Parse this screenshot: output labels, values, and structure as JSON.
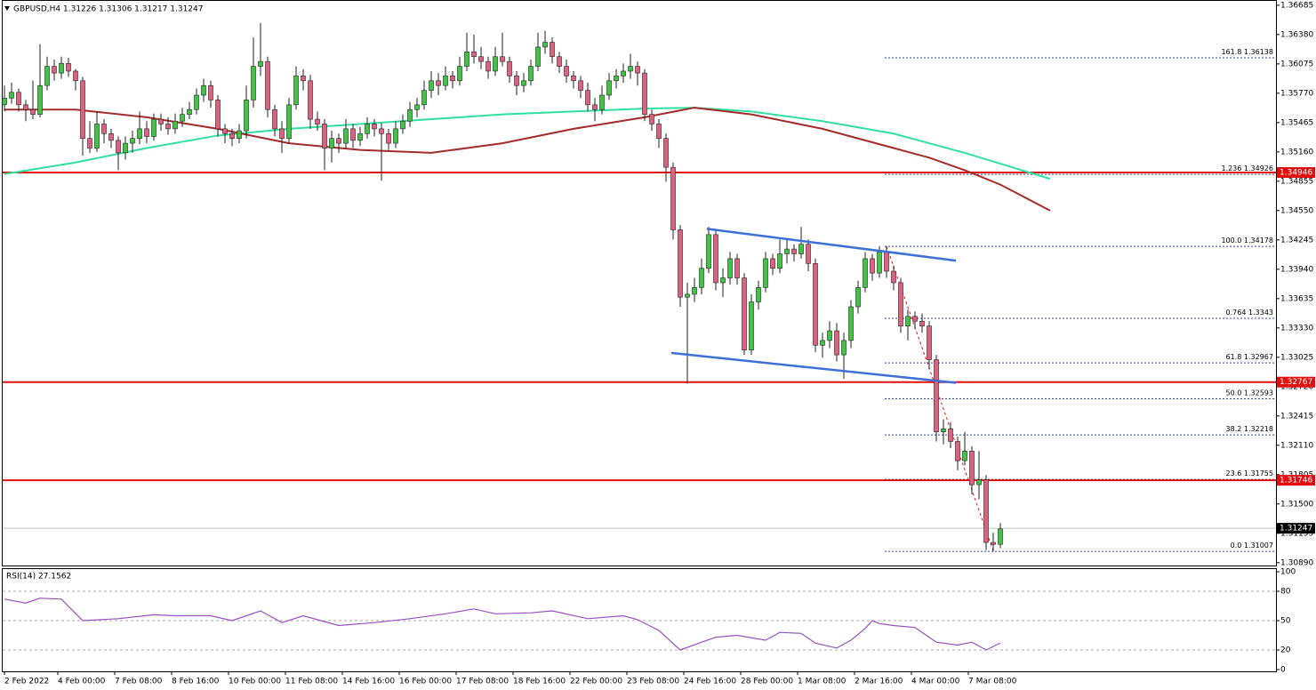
{
  "chart_data": {
    "type": "candlestick",
    "header": "GBPUSD,H4  1.31226 1.31306 1.31217 1.31247",
    "ylim": [
      1.3086,
      1.3673
    ],
    "yticks": [
      1.36685,
      {
        "value": 1.3638,
        "label": "1.36380"
      },
      1.36075,
      {
        "value": 1.3577,
        "label": "1.35770"
      },
      1.35465,
      {
        "value": 1.3516,
        "label": "1.35160"
      },
      1.34855,
      {
        "value": 1.3455,
        "label": "1.34550"
      },
      1.34245,
      {
        "value": 1.3394,
        "label": "1.33940"
      },
      1.33635,
      {
        "value": 1.3333,
        "label": "1.33330"
      },
      1.33025,
      {
        "value": 1.3272,
        "label": "1.32720"
      },
      1.32415,
      {
        "value": 1.3211,
        "label": "1.32110"
      },
      1.31805,
      {
        "value": 1.315,
        "label": "1.31500"
      },
      1.31195,
      {
        "value": 1.3089,
        "label": "1.30890"
      }
    ],
    "xticks": [
      {
        "value": 0,
        "label": "2 Feb 2022"
      },
      {
        "value": 7.5,
        "label": "4 Feb 00:00"
      },
      {
        "value": 15.5,
        "label": "7 Feb 08:00"
      },
      {
        "value": 23.5,
        "label": "8 Feb 16:00"
      },
      {
        "value": 31.5,
        "label": "10 Feb 00:00"
      },
      {
        "value": 39.5,
        "label": "11 Feb 08:00"
      },
      {
        "value": 47.5,
        "label": "14 Feb 16:00"
      },
      {
        "value": 55.5,
        "label": "16 Feb 00:00"
      },
      {
        "value": 63.5,
        "label": "17 Feb 08:00"
      },
      {
        "value": 71.5,
        "label": "18 Feb 16:00"
      },
      {
        "value": 79.5,
        "label": "22 Feb 00:00"
      },
      {
        "value": 87.5,
        "label": "23 Feb 08:00"
      },
      {
        "value": 95.5,
        "label": "24 Feb 16:00"
      },
      {
        "value": 103.5,
        "label": "28 Feb 00:00"
      },
      {
        "value": 111.5,
        "label": "1 Mar 08:00"
      },
      {
        "value": 119.5,
        "label": "2 Mar 16:00"
      },
      {
        "value": 127.5,
        "label": "4 Mar 00:00"
      },
      {
        "value": 135.5,
        "label": "7 Mar 08:00"
      }
    ],
    "bull_color": "#3cc83c",
    "bear_color": "#e0607e",
    "candles": [
      [
        1.3565,
        1.3585,
        1.3558,
        1.3572
      ],
      [
        1.3572,
        1.3588,
        1.3566,
        1.3578
      ],
      [
        1.3578,
        1.3582,
        1.3558,
        1.3565
      ],
      [
        1.3565,
        1.357,
        1.3548,
        1.356
      ],
      [
        1.356,
        1.359,
        1.355,
        1.3555
      ],
      [
        1.3555,
        1.3628,
        1.3552,
        1.3585
      ],
      [
        1.3585,
        1.3615,
        1.358,
        1.3605
      ],
      [
        1.3605,
        1.3612,
        1.359,
        1.3598
      ],
      [
        1.3598,
        1.3615,
        1.3592,
        1.3608
      ],
      [
        1.3608,
        1.3614,
        1.3594,
        1.36
      ],
      [
        1.36,
        1.3602,
        1.358,
        1.359
      ],
      [
        1.359,
        1.3594,
        1.3512,
        1.353
      ],
      [
        1.353,
        1.3548,
        1.3515,
        1.352
      ],
      [
        1.352,
        1.3558,
        1.3516,
        1.3545
      ],
      [
        1.3545,
        1.355,
        1.3525,
        1.3535
      ],
      [
        1.3535,
        1.354,
        1.352,
        1.3528
      ],
      [
        1.3528,
        1.3532,
        1.3497,
        1.3515
      ],
      [
        1.3515,
        1.3532,
        1.3508,
        1.3525
      ],
      [
        1.3525,
        1.3538,
        1.3515,
        1.353
      ],
      [
        1.353,
        1.3558,
        1.3524,
        1.354
      ],
      [
        1.354,
        1.3548,
        1.3525,
        1.3532
      ],
      [
        1.3532,
        1.3556,
        1.3528,
        1.355
      ],
      [
        1.355,
        1.3556,
        1.3538,
        1.3545
      ],
      [
        1.3545,
        1.3552,
        1.3534,
        1.354
      ],
      [
        1.354,
        1.3556,
        1.3535,
        1.3548
      ],
      [
        1.3548,
        1.3562,
        1.3542,
        1.3555
      ],
      [
        1.3555,
        1.3568,
        1.355,
        1.356
      ],
      [
        1.356,
        1.3582,
        1.3555,
        1.3575
      ],
      [
        1.3575,
        1.3592,
        1.3568,
        1.3585
      ],
      [
        1.3585,
        1.359,
        1.3562,
        1.357
      ],
      [
        1.357,
        1.3575,
        1.3532,
        1.354
      ],
      [
        1.354,
        1.3545,
        1.3525,
        1.3535
      ],
      [
        1.3535,
        1.354,
        1.3522,
        1.353
      ],
      [
        1.353,
        1.3545,
        1.3525,
        1.3538
      ],
      [
        1.3538,
        1.3585,
        1.353,
        1.357
      ],
      [
        1.357,
        1.3635,
        1.3562,
        1.3605
      ],
      [
        1.3605,
        1.365,
        1.3595,
        1.361
      ],
      [
        1.361,
        1.3615,
        1.3552,
        1.356
      ],
      [
        1.356,
        1.3565,
        1.3532,
        1.354
      ],
      [
        1.354,
        1.3548,
        1.3515,
        1.353
      ],
      [
        1.353,
        1.3572,
        1.3525,
        1.3565
      ],
      [
        1.3565,
        1.3605,
        1.356,
        1.3595
      ],
      [
        1.3595,
        1.3602,
        1.358,
        1.359
      ],
      [
        1.359,
        1.3596,
        1.354,
        1.355
      ],
      [
        1.355,
        1.3558,
        1.3538,
        1.3545
      ],
      [
        1.3545,
        1.355,
        1.3497,
        1.352
      ],
      [
        1.352,
        1.3538,
        1.3505,
        1.353
      ],
      [
        1.353,
        1.3535,
        1.3515,
        1.3525
      ],
      [
        1.3525,
        1.355,
        1.352,
        1.354
      ],
      [
        1.354,
        1.3545,
        1.352,
        1.3528
      ],
      [
        1.3528,
        1.3542,
        1.3522,
        1.3535
      ],
      [
        1.3535,
        1.3552,
        1.353,
        1.3545
      ],
      [
        1.3545,
        1.355,
        1.3532,
        1.354
      ],
      [
        1.354,
        1.3546,
        1.3486,
        1.3535
      ],
      [
        1.3535,
        1.354,
        1.3518,
        1.3525
      ],
      [
        1.3525,
        1.3548,
        1.352,
        1.354
      ],
      [
        1.354,
        1.3555,
        1.3535,
        1.3548
      ],
      [
        1.3548,
        1.3568,
        1.3542,
        1.356
      ],
      [
        1.356,
        1.3572,
        1.3552,
        1.3565
      ],
      [
        1.3565,
        1.359,
        1.356,
        1.358
      ],
      [
        1.358,
        1.36,
        1.3572,
        1.359
      ],
      [
        1.359,
        1.3598,
        1.3575,
        1.3585
      ],
      [
        1.3585,
        1.3605,
        1.358,
        1.3595
      ],
      [
        1.3595,
        1.36,
        1.3582,
        1.359
      ],
      [
        1.359,
        1.3615,
        1.3585,
        1.3605
      ],
      [
        1.3605,
        1.364,
        1.36,
        1.362
      ],
      [
        1.362,
        1.3638,
        1.3608,
        1.3615
      ],
      [
        1.3615,
        1.3625,
        1.3602,
        1.361
      ],
      [
        1.361,
        1.3615,
        1.3592,
        1.36
      ],
      [
        1.36,
        1.3625,
        1.3595,
        1.3615
      ],
      [
        1.3615,
        1.364,
        1.3605,
        1.361
      ],
      [
        1.361,
        1.3615,
        1.3588,
        1.3595
      ],
      [
        1.3595,
        1.36,
        1.3575,
        1.3585
      ],
      [
        1.3585,
        1.3598,
        1.3578,
        1.359
      ],
      [
        1.359,
        1.3612,
        1.3585,
        1.3605
      ],
      [
        1.3605,
        1.364,
        1.36,
        1.3625
      ],
      [
        1.3625,
        1.3642,
        1.3618,
        1.363
      ],
      [
        1.363,
        1.3635,
        1.3608,
        1.3615
      ],
      [
        1.3615,
        1.362,
        1.3598,
        1.3605
      ],
      [
        1.3605,
        1.3612,
        1.3588,
        1.3595
      ],
      [
        1.3595,
        1.36,
        1.3582,
        1.359
      ],
      [
        1.359,
        1.3595,
        1.3572,
        1.358
      ],
      [
        1.358,
        1.3588,
        1.3558,
        1.3565
      ],
      [
        1.3565,
        1.3572,
        1.3548,
        1.356
      ],
      [
        1.356,
        1.3585,
        1.3555,
        1.3575
      ],
      [
        1.3575,
        1.3598,
        1.357,
        1.359
      ],
      [
        1.359,
        1.3602,
        1.3582,
        1.3595
      ],
      [
        1.3595,
        1.3608,
        1.3588,
        1.36
      ],
      [
        1.36,
        1.3618,
        1.3592,
        1.3605
      ],
      [
        1.3605,
        1.361,
        1.3585,
        1.3598
      ],
      [
        1.3598,
        1.3602,
        1.3548,
        1.3555
      ],
      [
        1.3555,
        1.356,
        1.3538,
        1.3545
      ],
      [
        1.3545,
        1.355,
        1.352,
        1.353
      ],
      [
        1.353,
        1.3535,
        1.3485,
        1.35
      ],
      [
        1.35,
        1.3505,
        1.3425,
        1.3435
      ],
      [
        1.3435,
        1.344,
        1.3355,
        1.3365
      ],
      [
        1.3365,
        1.338,
        1.3275,
        1.3368
      ],
      [
        1.3368,
        1.3385,
        1.336,
        1.3375
      ],
      [
        1.3375,
        1.3405,
        1.3368,
        1.3395
      ],
      [
        1.3395,
        1.3438,
        1.339,
        1.343
      ],
      [
        1.343,
        1.3436,
        1.3372,
        1.338
      ],
      [
        1.338,
        1.3395,
        1.3365,
        1.3385
      ],
      [
        1.3385,
        1.3412,
        1.3378,
        1.3405
      ],
      [
        1.3405,
        1.341,
        1.3378,
        1.3385
      ],
      [
        1.3385,
        1.339,
        1.3305,
        1.331
      ],
      [
        1.331,
        1.3368,
        1.3305,
        1.336
      ],
      [
        1.336,
        1.3382,
        1.3352,
        1.3375
      ],
      [
        1.3375,
        1.3412,
        1.337,
        1.3405
      ],
      [
        1.3405,
        1.341,
        1.3388,
        1.3395
      ],
      [
        1.3395,
        1.3425,
        1.339,
        1.341
      ],
      [
        1.341,
        1.3425,
        1.34,
        1.3415
      ],
      [
        1.3415,
        1.342,
        1.3402,
        1.341
      ],
      [
        1.341,
        1.3438,
        1.3405,
        1.342
      ],
      [
        1.342,
        1.3425,
        1.3392,
        1.34
      ],
      [
        1.34,
        1.3405,
        1.3308,
        1.3315
      ],
      [
        1.3315,
        1.3328,
        1.3302,
        1.332
      ],
      [
        1.332,
        1.334,
        1.3312,
        1.333
      ],
      [
        1.333,
        1.3338,
        1.3298,
        1.3305
      ],
      [
        1.3305,
        1.3328,
        1.328,
        1.332
      ],
      [
        1.332,
        1.3362,
        1.3312,
        1.3355
      ],
      [
        1.3355,
        1.3382,
        1.3348,
        1.3375
      ],
      [
        1.3375,
        1.3412,
        1.337,
        1.3405
      ],
      [
        1.3405,
        1.341,
        1.3382,
        1.339
      ],
      [
        1.339,
        1.3418,
        1.3385,
        1.3412
      ],
      [
        1.3412,
        1.3418,
        1.3385,
        1.3392
      ],
      [
        1.3392,
        1.3398,
        1.3372,
        1.338
      ],
      [
        1.338,
        1.3385,
        1.3328,
        1.3335
      ],
      [
        1.3335,
        1.3352,
        1.332,
        1.3345
      ],
      [
        1.3345,
        1.335,
        1.3332,
        1.334
      ],
      [
        1.334,
        1.3348,
        1.3328,
        1.3335
      ],
      [
        1.3335,
        1.334,
        1.329,
        1.33
      ],
      [
        1.33,
        1.3305,
        1.3215,
        1.3225
      ],
      [
        1.3225,
        1.3238,
        1.3212,
        1.3228
      ],
      [
        1.3228,
        1.3235,
        1.3208,
        1.3215
      ],
      [
        1.3215,
        1.322,
        1.3185,
        1.3195
      ],
      [
        1.3195,
        1.3225,
        1.319,
        1.3205
      ],
      [
        1.3205,
        1.321,
        1.316,
        1.317
      ],
      [
        1.317,
        1.3205,
        1.3155,
        1.3175
      ],
      [
        1.3175,
        1.318,
        1.3102,
        1.311
      ],
      [
        1.311,
        1.312,
        1.3101,
        1.3108
      ],
      [
        1.3108,
        1.313,
        1.3104,
        1.3124
      ]
    ],
    "lines": [
      {
        "color": "#30e0a0",
        "x": [
          0,
          10,
          20,
          30,
          40,
          50,
          60,
          70,
          80,
          90,
          97,
          105,
          115,
          125,
          135,
          147
        ],
        "values": [
          1.3493,
          1.3505,
          1.352,
          1.3533,
          1.354,
          1.3545,
          1.355,
          1.3555,
          1.3558,
          1.3561,
          1.3562,
          1.3558,
          1.3548,
          1.3535,
          1.3515,
          1.3488
        ]
      },
      {
        "color": "#a52a2a",
        "x": [
          0,
          10,
          20,
          30,
          40,
          50,
          60,
          70,
          80,
          90,
          97,
          105,
          115,
          125,
          130,
          135,
          140,
          147
        ],
        "values": [
          1.356,
          1.356,
          1.3552,
          1.354,
          1.3525,
          1.3518,
          1.3515,
          1.3525,
          1.354,
          1.3552,
          1.3562,
          1.3555,
          1.354,
          1.352,
          1.351,
          1.3497,
          1.3482,
          1.3455
        ]
      }
    ],
    "trendlines": [
      {
        "color": "#3d6fd8",
        "x": [
          98.75,
          133.75
        ],
        "y": [
          1.3436,
          1.3403
        ]
      },
      {
        "color": "#3d6fd8",
        "x": [
          93.75,
          133.75
        ],
        "y": [
          1.3307,
          1.3276
        ]
      }
    ],
    "fib": {
      "color": "#2a3fc0",
      "x": [
        124,
        139
      ],
      "y": [
        1.3418,
        1.3101
      ],
      "levels": [
        {
          "label": "161.8",
          "value": 1.36138
        },
        {
          "label": "1.236",
          "value": 1.34926
        },
        {
          "label": "100.0",
          "value": 1.34178
        },
        {
          "label": "0.764",
          "value": 1.3343
        },
        {
          "label": "61.8",
          "value": 1.32967
        },
        {
          "label": "50.0",
          "value": 1.32593
        },
        {
          "label": "38.2",
          "value": 1.32218
        },
        {
          "label": "23.6",
          "value": 1.31755
        },
        {
          "label": "0.0",
          "value": 1.31007
        }
      ]
    },
    "hlines": [
      {
        "value": 1.34946,
        "color": "#e01010"
      },
      {
        "value": 1.32767,
        "color": "#e01010"
      },
      {
        "value": 1.31746,
        "color": "#e01010"
      }
    ],
    "current": {
      "value": 1.31247,
      "color": "#000000"
    },
    "rsi": {
      "label": "RSI(14) 27.1562",
      "color": "#9a4fc4",
      "ylim": [
        0,
        100
      ],
      "yticks": [
        0,
        20,
        50,
        80,
        100
      ],
      "levels": [
        20,
        50,
        80
      ],
      "x": [
        0,
        3,
        5,
        8,
        11,
        16,
        21,
        24,
        29,
        32,
        36,
        39,
        42,
        47,
        52,
        57,
        62,
        66,
        69,
        74,
        77,
        82,
        87,
        89,
        92,
        95,
        98,
        100,
        103,
        107,
        109,
        112,
        114,
        117,
        119,
        121,
        122,
        123,
        125,
        128,
        131,
        134,
        136,
        138,
        140
      ],
      "values": [
        72,
        68,
        73,
        72,
        50,
        52,
        56,
        55,
        55,
        50,
        60,
        48,
        55,
        45,
        48,
        52,
        57,
        62,
        57,
        58,
        60,
        52,
        55,
        51,
        40,
        20,
        28,
        33,
        35,
        30,
        38,
        37,
        27,
        22,
        30,
        42,
        50,
        47,
        45,
        43,
        28,
        25,
        28,
        20,
        27.1562
      ]
    }
  }
}
